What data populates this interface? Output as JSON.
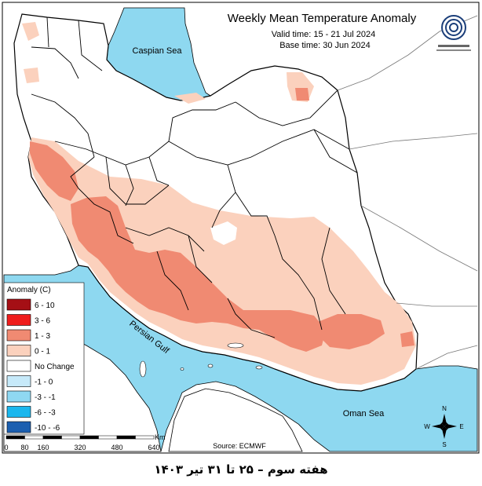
{
  "header": {
    "title": "Weekly Mean Temperature Anomaly",
    "valid_time": "Valid time: 15 - 21 Jul 2024",
    "base_time": "Base time: 30 Jun 2024"
  },
  "seas": {
    "caspian": "Caspian Sea",
    "persian_gulf": "Persian Gulf",
    "oman": "Oman Sea"
  },
  "legend": {
    "title": "Anomaly (C)",
    "items": [
      {
        "label": "6 - 10",
        "color": "#a50f15"
      },
      {
        "label": "3 - 6",
        "color": "#ef1c1c"
      },
      {
        "label": "1 - 3",
        "color": "#f08a72"
      },
      {
        "label": "0 - 1",
        "color": "#fbd1bd"
      },
      {
        "label": "No Change",
        "color": "#ffffff"
      },
      {
        "label": "-1 - 0",
        "color": "#c6e9f9"
      },
      {
        "label": "-3 - -1",
        "color": "#8fd8f2"
      },
      {
        "label": "-6 - -3",
        "color": "#1ab7ee"
      },
      {
        "label": "-10 - -6",
        "color": "#1c5fb0"
      }
    ]
  },
  "scale": {
    "unit": "Km",
    "ticks": [
      "0",
      "80",
      "160",
      "320",
      "480",
      "640"
    ]
  },
  "source": "Source: ECMWF",
  "footer": "هفته سوم – ۲۵ تا ۳۱ تیر ۱۴۰۳",
  "compass": {
    "n": "N",
    "s": "S",
    "e": "E",
    "w": "W"
  },
  "colors": {
    "sea": "#8ed8f0",
    "anomaly_1_3": "#f08a72",
    "anomaly_0_1": "#fbd1bd",
    "border": "#000000"
  }
}
